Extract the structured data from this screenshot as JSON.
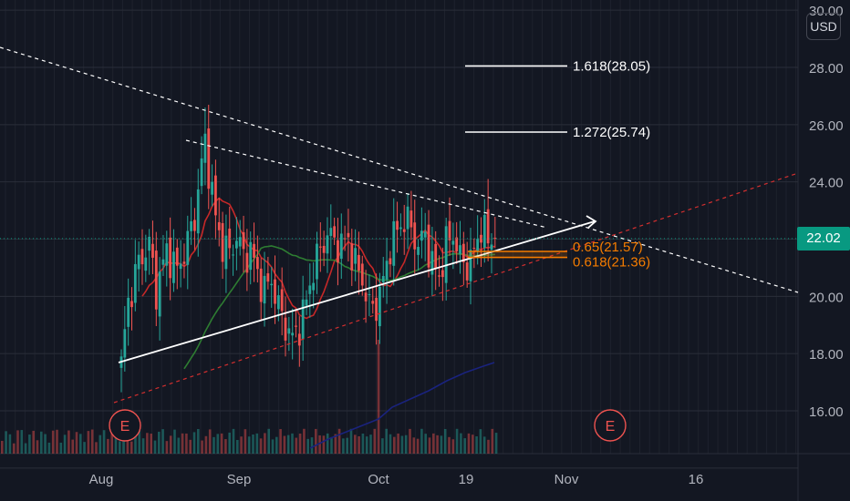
{
  "chart_data": {
    "type": "candlestick",
    "instrument_currency": "USD",
    "y_ticks": [
      "16.00",
      "18.00",
      "20.00",
      "22.00",
      "24.00",
      "26.00",
      "28.00",
      "30.00"
    ],
    "x_ticks": [
      "Aug",
      "Sep",
      "Oct",
      "19",
      "Nov",
      "16"
    ],
    "ylim": [
      14.5,
      30.2
    ],
    "last_price": "22.02",
    "fib_levels": [
      {
        "label": "1.618(28.05)",
        "value": 28.05
      },
      {
        "label": "1.272(25.74)",
        "value": 25.74
      },
      {
        "label": "0.65(21.57)",
        "value": 21.57
      },
      {
        "label": "0.618(21.36)",
        "value": 21.36
      }
    ],
    "earnings_markers": [
      "E",
      "E"
    ],
    "colors": {
      "background": "#131722",
      "up": "#26a69a",
      "down": "#ef5350",
      "ma_short": "#c62828",
      "ma_mid": "#2e7d32",
      "ma_long": "#1a237e",
      "trendline": "#ffffff",
      "support_dashed": "#d32f2f",
      "resistance_dashed": "#ffffff",
      "fib_low": "#f57c00",
      "price_tag": "#089981"
    },
    "grid": true
  }
}
